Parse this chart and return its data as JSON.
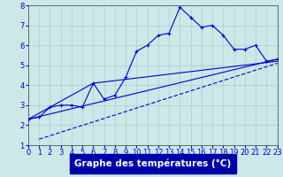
{
  "background_color": "#cce8e8",
  "grid_color": "#aacccc",
  "line_color": "#0000cc",
  "xlabel": "Graphe des températures (°C)",
  "xlabel_fontsize": 7.5,
  "tick_fontsize": 6.0,
  "xlim": [
    0,
    23
  ],
  "ylim": [
    1,
    8
  ],
  "xticks": [
    0,
    1,
    2,
    3,
    4,
    5,
    6,
    7,
    8,
    9,
    10,
    11,
    12,
    13,
    14,
    15,
    16,
    17,
    18,
    19,
    20,
    21,
    22,
    23
  ],
  "yticks": [
    1,
    2,
    3,
    4,
    5,
    6,
    7,
    8
  ],
  "main_x": [
    0,
    1,
    2,
    3,
    4,
    5,
    6,
    7,
    8,
    9,
    10,
    11,
    12,
    13,
    14,
    15,
    16,
    17,
    18,
    19,
    20,
    21,
    22,
    23
  ],
  "main_y": [
    2.3,
    2.4,
    2.9,
    3.0,
    3.0,
    2.9,
    4.1,
    3.3,
    3.5,
    4.4,
    5.7,
    6.0,
    6.5,
    6.6,
    7.9,
    7.4,
    6.9,
    7.0,
    6.5,
    5.8,
    5.8,
    6.0,
    5.2,
    5.3
  ],
  "line2_x": [
    0,
    23
  ],
  "line2_y": [
    2.3,
    5.3
  ],
  "line3_x": [
    0,
    6,
    23
  ],
  "line3_y": [
    2.3,
    4.1,
    5.2
  ],
  "line4_x": [
    1,
    23
  ],
  "line4_y": [
    1.3,
    5.1
  ],
  "xlabel_bg": "#0000aa",
  "xlabel_fg": "#ffffff"
}
